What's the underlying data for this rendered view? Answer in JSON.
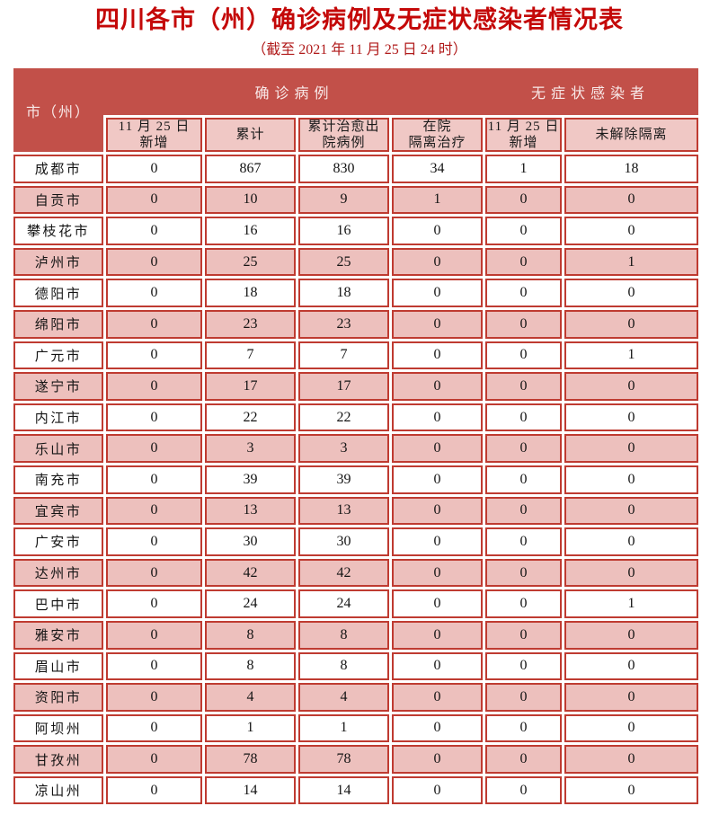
{
  "title": "四川各市（州）确诊病例及无症状感染者情况表",
  "subtitle": "（截至 2021 年 11 月 25 日 24 时）",
  "theme": {
    "title_color": "#C40808",
    "subtitle_color": "#B01A1A",
    "header_bg": "#C25049",
    "header_text": "#F8E9E8",
    "subheader_bg": "#F0C8C5",
    "row_pink": "#EDC0BD",
    "row_white": "#FFFFFF",
    "border_red": "#BF3B31",
    "cell_text": "#141414"
  },
  "table": {
    "corner_header": "市（州）",
    "groups": [
      {
        "label": "确诊病例",
        "span": 4
      },
      {
        "label": "无症状感染者",
        "span": 2
      }
    ],
    "columns": [
      "11 月 25 日\n新增",
      "累计",
      "累计治愈出\n院病例",
      "在院\n隔离治疗",
      "11 月 25 日\n新增",
      "未解除隔离"
    ],
    "rows": [
      {
        "city": "成都市",
        "values": [
          "0",
          "867",
          "830",
          "34",
          "1",
          "18"
        ]
      },
      {
        "city": "自贡市",
        "values": [
          "0",
          "10",
          "9",
          "1",
          "0",
          "0"
        ]
      },
      {
        "city": "攀枝花市",
        "values": [
          "0",
          "16",
          "16",
          "0",
          "0",
          "0"
        ]
      },
      {
        "city": "泸州市",
        "values": [
          "0",
          "25",
          "25",
          "0",
          "0",
          "1"
        ]
      },
      {
        "city": "德阳市",
        "values": [
          "0",
          "18",
          "18",
          "0",
          "0",
          "0"
        ]
      },
      {
        "city": "绵阳市",
        "values": [
          "0",
          "23",
          "23",
          "0",
          "0",
          "0"
        ]
      },
      {
        "city": "广元市",
        "values": [
          "0",
          "7",
          "7",
          "0",
          "0",
          "1"
        ]
      },
      {
        "city": "遂宁市",
        "values": [
          "0",
          "17",
          "17",
          "0",
          "0",
          "0"
        ]
      },
      {
        "city": "内江市",
        "values": [
          "0",
          "22",
          "22",
          "0",
          "0",
          "0"
        ]
      },
      {
        "city": "乐山市",
        "values": [
          "0",
          "3",
          "3",
          "0",
          "0",
          "0"
        ]
      },
      {
        "city": "南充市",
        "values": [
          "0",
          "39",
          "39",
          "0",
          "0",
          "0"
        ]
      },
      {
        "city": "宜宾市",
        "values": [
          "0",
          "13",
          "13",
          "0",
          "0",
          "0"
        ]
      },
      {
        "city": "广安市",
        "values": [
          "0",
          "30",
          "30",
          "0",
          "0",
          "0"
        ]
      },
      {
        "city": "达州市",
        "values": [
          "0",
          "42",
          "42",
          "0",
          "0",
          "0"
        ]
      },
      {
        "city": "巴中市",
        "values": [
          "0",
          "24",
          "24",
          "0",
          "0",
          "1"
        ]
      },
      {
        "city": "雅安市",
        "values": [
          "0",
          "8",
          "8",
          "0",
          "0",
          "0"
        ]
      },
      {
        "city": "眉山市",
        "values": [
          "0",
          "8",
          "8",
          "0",
          "0",
          "0"
        ]
      },
      {
        "city": "资阳市",
        "values": [
          "0",
          "4",
          "4",
          "0",
          "0",
          "0"
        ]
      },
      {
        "city": "阿坝州",
        "values": [
          "0",
          "1",
          "1",
          "0",
          "0",
          "0"
        ]
      },
      {
        "city": "甘孜州",
        "values": [
          "0",
          "78",
          "78",
          "0",
          "0",
          "0"
        ]
      },
      {
        "city": "凉山州",
        "values": [
          "0",
          "14",
          "14",
          "0",
          "0",
          "0"
        ]
      }
    ]
  }
}
